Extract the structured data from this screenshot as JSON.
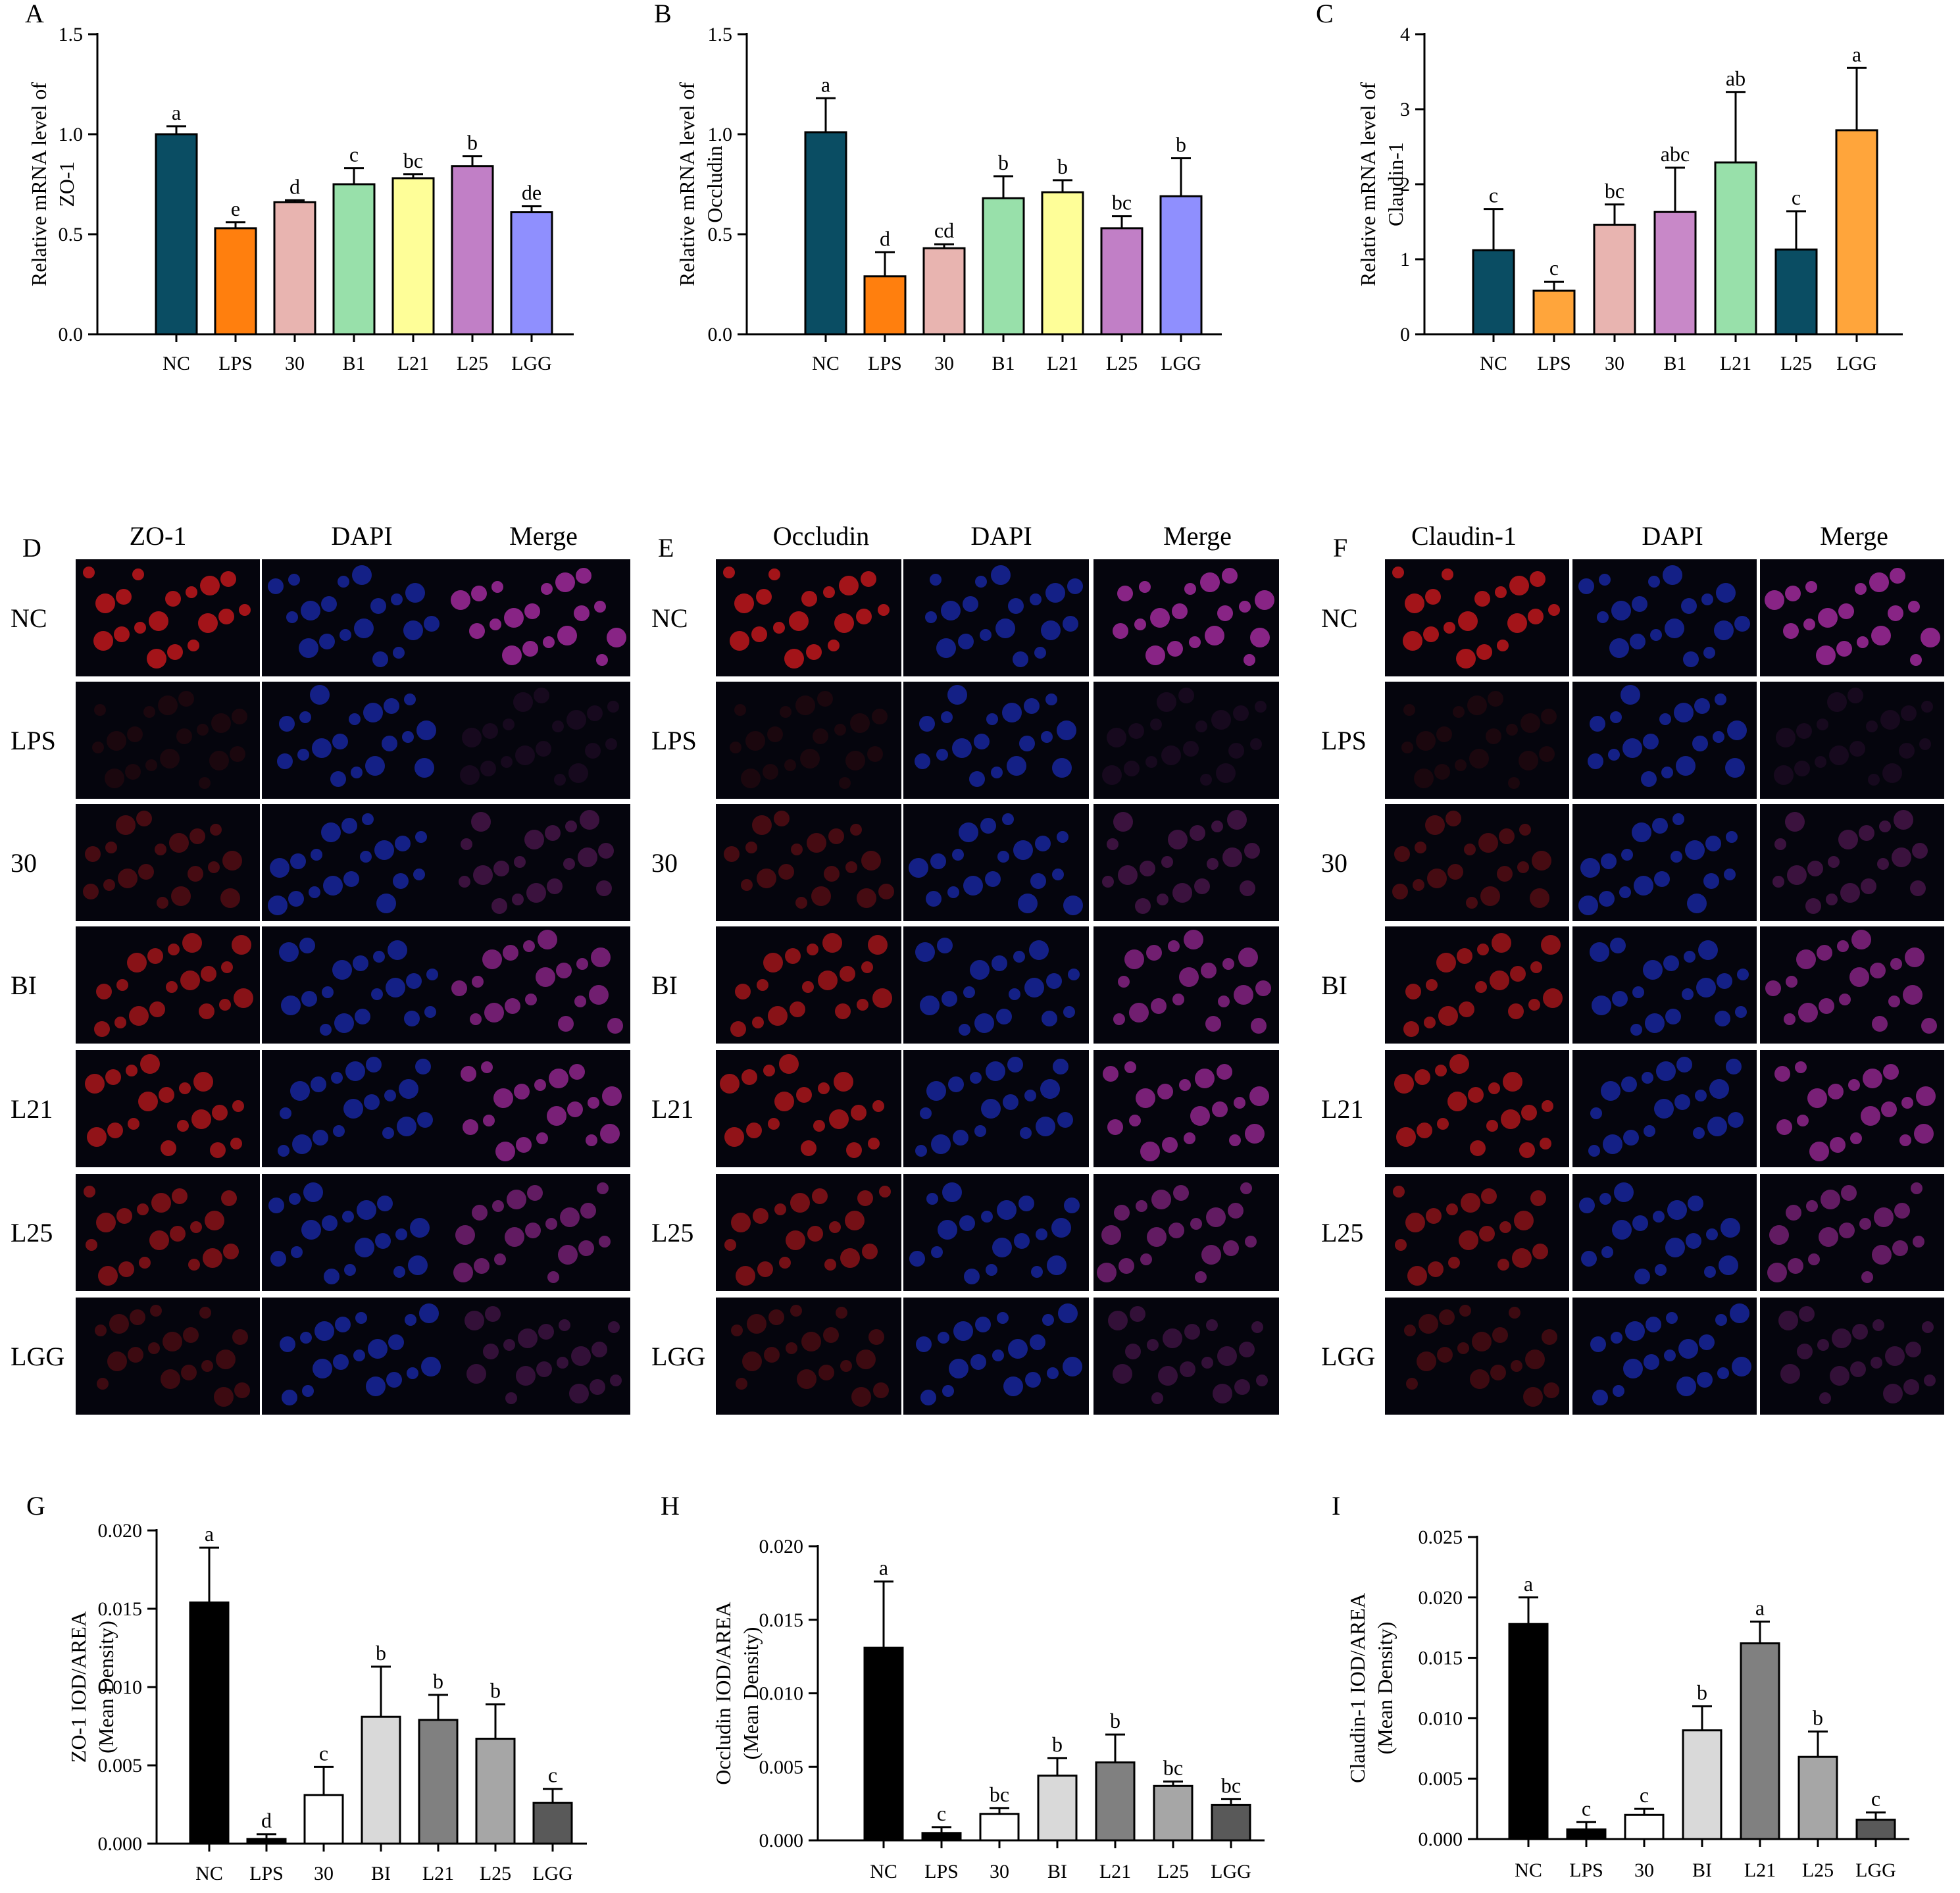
{
  "chart_data": [
    {
      "panel": "A",
      "type": "bar",
      "categories": [
        "NC",
        "LPS",
        "30",
        "B1",
        "L21",
        "L25",
        "LGG"
      ],
      "values": [
        1.0,
        0.53,
        0.66,
        0.75,
        0.78,
        0.84,
        0.61
      ],
      "errors": [
        0.04,
        0.03,
        0.01,
        0.08,
        0.02,
        0.05,
        0.03
      ],
      "letters": [
        "a",
        "e",
        "d",
        "c",
        "bc",
        "b",
        "de"
      ],
      "colors": [
        "#0a4d63",
        "#ff7f0e",
        "#e8b4b0",
        "#98e0aa",
        "#fefe98",
        "#c17fc6",
        "#8f8ffe"
      ],
      "title": "",
      "xlabel": "",
      "ylabel": "Relative mRNA level of ZO-1",
      "ylim": [
        0,
        1.5
      ],
      "yticks": [
        0.0,
        0.5,
        1.0,
        1.5
      ],
      "ytick_labels": [
        "0.0",
        "0.5",
        "1.0",
        "1.5"
      ]
    },
    {
      "panel": "B",
      "type": "bar",
      "categories": [
        "NC",
        "LPS",
        "30",
        "B1",
        "L21",
        "L25",
        "LGG"
      ],
      "values": [
        1.01,
        0.29,
        0.43,
        0.68,
        0.71,
        0.53,
        0.69
      ],
      "errors": [
        0.17,
        0.12,
        0.02,
        0.11,
        0.06,
        0.06,
        0.19
      ],
      "letters": [
        "a",
        "d",
        "cd",
        "b",
        "b",
        "bc",
        "b"
      ],
      "colors": [
        "#0a4d63",
        "#ff7f0e",
        "#e8b4b0",
        "#98e0aa",
        "#fefe98",
        "#c17fc6",
        "#8f8ffe"
      ],
      "title": "",
      "xlabel": "",
      "ylabel": "Relative mRNA level of Occludin",
      "ylim": [
        0,
        1.5
      ],
      "yticks": [
        0.0,
        0.5,
        1.0,
        1.5
      ],
      "ytick_labels": [
        "0.0",
        "0.5",
        "1.0",
        "1.5"
      ]
    },
    {
      "panel": "C",
      "type": "bar",
      "categories": [
        "NC",
        "LPS",
        "30",
        "B1",
        "L21",
        "L25",
        "LGG"
      ],
      "values": [
        1.12,
        0.58,
        1.46,
        1.63,
        2.29,
        1.13,
        2.72
      ],
      "errors": [
        0.55,
        0.12,
        0.27,
        0.59,
        0.94,
        0.51,
        0.83
      ],
      "letters": [
        "c",
        "c",
        "bc",
        "abc",
        "ab",
        "c",
        "a"
      ],
      "colors": [
        "#0a4d63",
        "#ffa53b",
        "#e8b4b0",
        "#c888c8",
        "#98e0aa",
        "#0a4d63",
        "#ffa53b"
      ],
      "title": "",
      "xlabel": "",
      "ylabel": "Relative mRNA level of Claudin-1",
      "ylim": [
        0,
        4
      ],
      "yticks": [
        0,
        1,
        2,
        3,
        4
      ],
      "ytick_labels": [
        "0",
        "1",
        "2",
        "3",
        "4"
      ]
    },
    {
      "panel": "G",
      "type": "bar",
      "categories": [
        "NC",
        "LPS",
        "30",
        "BI",
        "L21",
        "L25",
        "LGG"
      ],
      "values": [
        0.0154,
        0.0003,
        0.0031,
        0.0081,
        0.0079,
        0.0067,
        0.0026
      ],
      "errors": [
        0.0035,
        0.0003,
        0.0018,
        0.0032,
        0.0016,
        0.0022,
        0.0009
      ],
      "letters": [
        "a",
        "d",
        "c",
        "b",
        "b",
        "b",
        "c"
      ],
      "colors": [
        "#000000",
        "#000000",
        "#ffffff",
        "#d9d9d9",
        "#808080",
        "#a6a6a6",
        "#595959"
      ],
      "title": "",
      "xlabel": "",
      "ylabel": "ZO-1 IOD/AREA (Mean Density)",
      "ylim": [
        0,
        0.02
      ],
      "yticks": [
        0,
        0.005,
        0.01,
        0.015,
        0.02
      ],
      "ytick_labels": [
        "0.000",
        "0.005",
        "0.010",
        "0.015",
        "0.020"
      ]
    },
    {
      "panel": "H",
      "type": "bar",
      "categories": [
        "NC",
        "LPS",
        "30",
        "BI",
        "L21",
        "L25",
        "LGG"
      ],
      "values": [
        0.0131,
        0.0005,
        0.0018,
        0.0044,
        0.0053,
        0.0037,
        0.0024
      ],
      "errors": [
        0.0045,
        0.0004,
        0.0004,
        0.0012,
        0.0019,
        0.0003,
        0.0004
      ],
      "letters": [
        "a",
        "c",
        "bc",
        "b",
        "b",
        "bc",
        "bc"
      ],
      "colors": [
        "#000000",
        "#000000",
        "#ffffff",
        "#d9d9d9",
        "#808080",
        "#a6a6a6",
        "#595959"
      ],
      "title": "",
      "xlabel": "",
      "ylabel": "Occludin IOD/AREA (Mean Density)",
      "ylim": [
        0,
        0.02
      ],
      "yticks": [
        0,
        0.005,
        0.01,
        0.015,
        0.02
      ],
      "ytick_labels": [
        "0.000",
        "0.005",
        "0.010",
        "0.015",
        "0.020"
      ]
    },
    {
      "panel": "I",
      "type": "bar",
      "categories": [
        "NC",
        "LPS",
        "30",
        "BI",
        "L21",
        "L25",
        "LGG"
      ],
      "values": [
        0.0178,
        0.0008,
        0.002,
        0.009,
        0.0162,
        0.0068,
        0.0016
      ],
      "errors": [
        0.0022,
        0.0006,
        0.0005,
        0.002,
        0.0018,
        0.0021,
        0.0006
      ],
      "letters": [
        "a",
        "c",
        "c",
        "b",
        "a",
        "b",
        "c"
      ],
      "colors": [
        "#000000",
        "#000000",
        "#ffffff",
        "#d9d9d9",
        "#808080",
        "#a6a6a6",
        "#595959"
      ],
      "title": "",
      "xlabel": "",
      "ylabel": "Claudin-1 IOD/AREA (Mean Density)",
      "ylim": [
        0,
        0.025
      ],
      "yticks": [
        0,
        0.005,
        0.01,
        0.015,
        0.02,
        0.025
      ],
      "ytick_labels": [
        "0.000",
        "0.005",
        "0.010",
        "0.015",
        "0.020",
        "0.025"
      ]
    }
  ],
  "images": [
    {
      "panel": "D",
      "columns": [
        "ZO-1",
        "DAPI",
        "Merge"
      ],
      "rows": [
        "NC",
        "LPS",
        "30",
        "BI",
        "L21",
        "L25",
        "LGG"
      ]
    },
    {
      "panel": "E",
      "columns": [
        "Occludin",
        "DAPI",
        "Merge"
      ],
      "rows": [
        "NC",
        "LPS",
        "30",
        "BI",
        "L21",
        "L25",
        "LGG"
      ]
    },
    {
      "panel": "F",
      "columns": [
        "Claudin-1",
        "DAPI",
        "Merge"
      ],
      "rows": [
        "NC",
        "LPS",
        "30",
        "BI",
        "L21",
        "L25",
        "LGG"
      ]
    }
  ]
}
